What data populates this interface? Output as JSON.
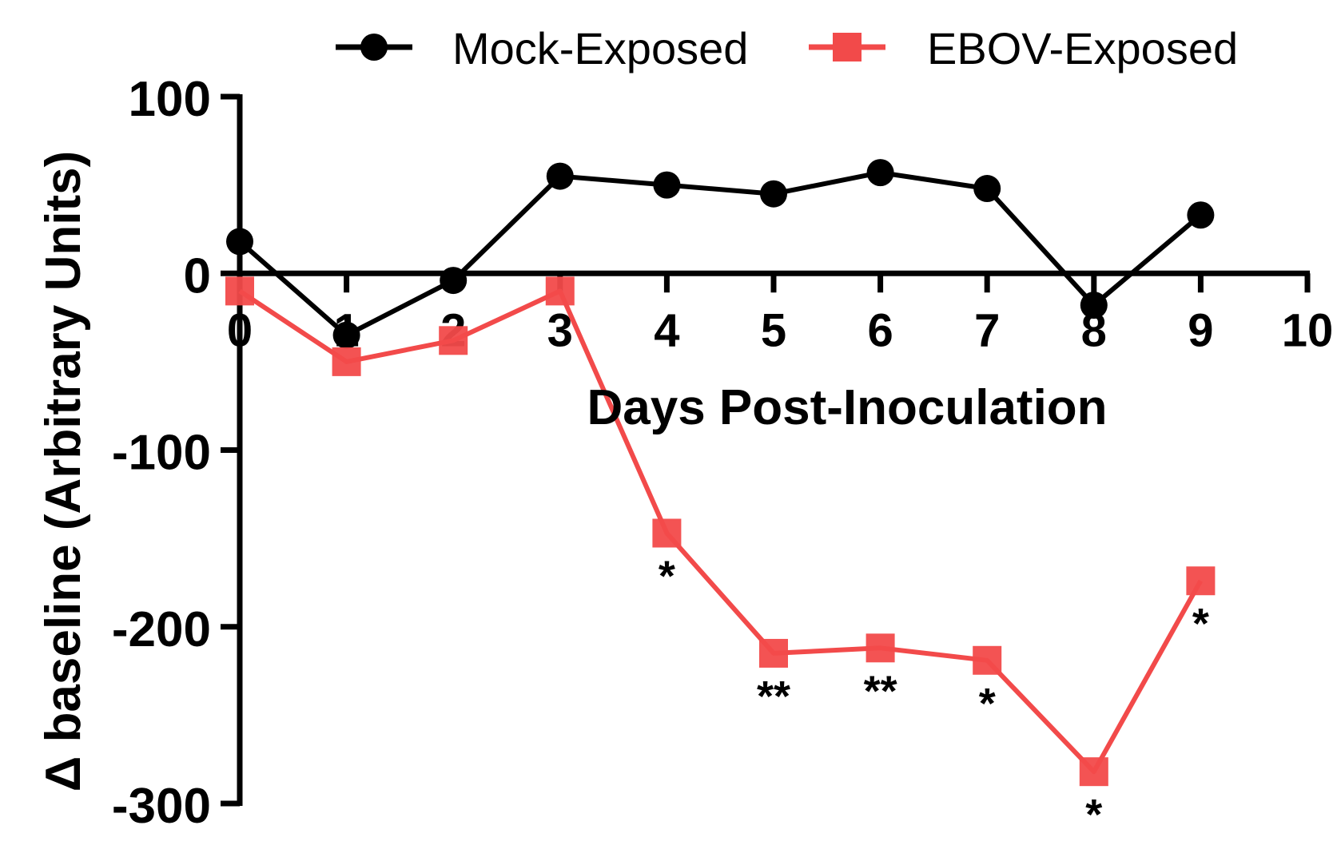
{
  "chart_data": {
    "type": "line",
    "title": "",
    "xlabel": "Days Post-Inoculation",
    "ylabel": "Δ baseline (Arbitrary Units)",
    "xlim": [
      0,
      10
    ],
    "ylim": [
      -300,
      100
    ],
    "x_ticks": [
      "0",
      "1",
      "2",
      "3",
      "4",
      "5",
      "6",
      "7",
      "8",
      "9",
      "10"
    ],
    "y_ticks": [
      "100",
      "0",
      "-100",
      "-200",
      "-300"
    ],
    "grid": false,
    "legend": "top",
    "series": [
      {
        "name": "Mock-Exposed",
        "color": "#000000",
        "marker": "circle",
        "x": [
          0,
          1,
          2,
          3,
          4,
          5,
          6,
          7,
          8,
          9
        ],
        "y": [
          18,
          -35,
          -4,
          55,
          50,
          45,
          57,
          48,
          -18,
          33
        ]
      },
      {
        "name": "EBOV-Exposed",
        "color": "#f24a4a",
        "marker": "square",
        "x": [
          0,
          1,
          2,
          3,
          4,
          5,
          6,
          7,
          8,
          9
        ],
        "y": [
          -10,
          -50,
          -38,
          -10,
          -147,
          -215,
          -212,
          -219,
          -282,
          -174
        ]
      }
    ],
    "annotations": [
      {
        "x": 4,
        "text": "*"
      },
      {
        "x": 5,
        "text": "**"
      },
      {
        "x": 6,
        "text": "**"
      },
      {
        "x": 7,
        "text": "*"
      },
      {
        "x": 8,
        "text": "*"
      },
      {
        "x": 9,
        "text": "*"
      }
    ]
  }
}
